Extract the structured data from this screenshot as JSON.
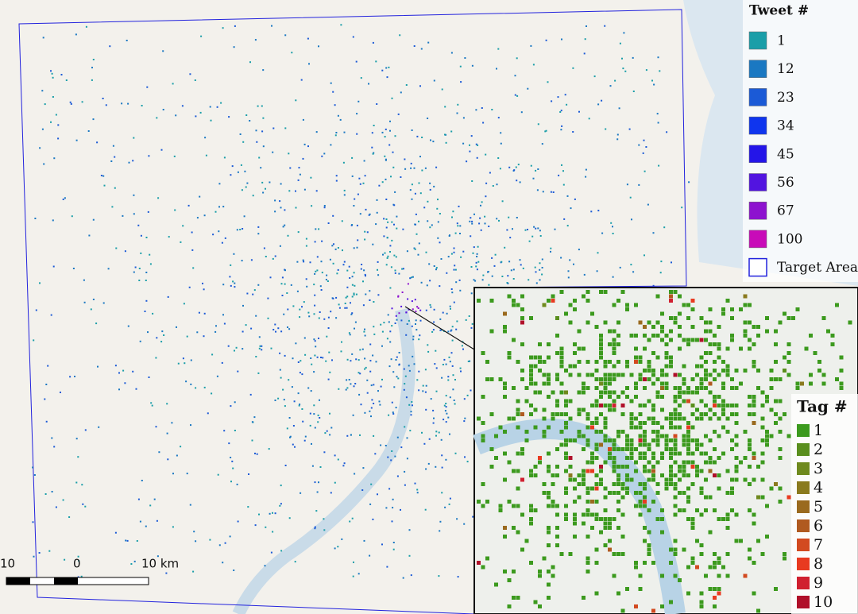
{
  "legend": {
    "title": "Tweet #",
    "items": [
      {
        "label": "1",
        "color": "#1a9ea8"
      },
      {
        "label": "12",
        "color": "#1a78c2"
      },
      {
        "label": "23",
        "color": "#1b5ad6"
      },
      {
        "label": "34",
        "color": "#0f35ee"
      },
      {
        "label": "45",
        "color": "#2415e8"
      },
      {
        "label": "56",
        "color": "#5214e0"
      },
      {
        "label": "67",
        "color": "#8d12cf"
      },
      {
        "label": "100",
        "color": "#c80bb8"
      }
    ],
    "target_area": {
      "label": "Target Area",
      "color": "#2222dd"
    }
  },
  "inset_legend": {
    "title": "Tag #",
    "items": [
      {
        "label": "1",
        "color": "#3c9a1e"
      },
      {
        "label": "2",
        "color": "#5a8f1e"
      },
      {
        "label": "3",
        "color": "#6f8a1e"
      },
      {
        "label": "4",
        "color": "#8a7a1e"
      },
      {
        "label": "5",
        "color": "#9a6a1e"
      },
      {
        "label": "6",
        "color": "#b05a20"
      },
      {
        "label": "7",
        "color": "#d24a20"
      },
      {
        "label": "8",
        "color": "#e83a20"
      },
      {
        "label": "9",
        "color": "#d02030"
      },
      {
        "label": "10",
        "color": "#b0102a"
      }
    ]
  },
  "scale_bar": {
    "labels": [
      "10",
      "0",
      "10 km"
    ]
  }
}
